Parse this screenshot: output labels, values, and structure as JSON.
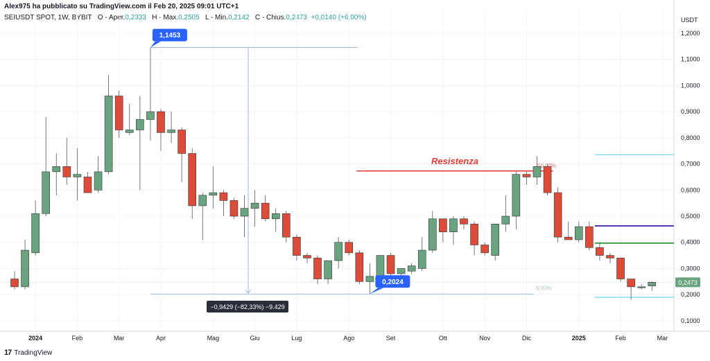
{
  "header": {
    "publisher": "Alex975 ha pubblicato su TradingView.com il Feb 20, 2025 09:01 UTC+1",
    "symbol": "SEIUSDT SPOT, 1W, BYBIT",
    "open_label": "O - Aper.",
    "open": "0,2333",
    "high_label": "H - Max.",
    "high": "0,2505",
    "low_label": "L - Min.",
    "low": "0,2142",
    "close_label": "C - Chius.",
    "close": "0,2473",
    "change": "+0,0140 (+6,00%)"
  },
  "axis_unit": "USDT",
  "footer": {
    "logo_text": "TradingView",
    "logo_mark": "17"
  },
  "colors": {
    "up": "#6aa37f",
    "down": "#dd4b39",
    "grid": "#f0f3fa",
    "annotation_blue": "#2962ff",
    "resistance_red": "#e53935",
    "cyan": "#80deea",
    "purple": "#5e35b1",
    "green_line": "#43a047"
  },
  "chart_data": {
    "type": "candlestick",
    "title": "",
    "ylabel": "USDT",
    "ylim": [
      0.06,
      1.29
    ],
    "y_ticks": [
      {
        "v": 1.2,
        "label": "1,2000"
      },
      {
        "v": 1.1,
        "label": "1,1000"
      },
      {
        "v": 1.0,
        "label": "1,0000"
      },
      {
        "v": 0.9,
        "label": "0,9000"
      },
      {
        "v": 0.8,
        "label": "0,8000"
      },
      {
        "v": 0.7,
        "label": "0,7000"
      },
      {
        "v": 0.6,
        "label": "0,6000"
      },
      {
        "v": 0.5,
        "label": "0,5000"
      },
      {
        "v": 0.4,
        "label": "0,4000"
      },
      {
        "v": 0.3,
        "label": "0,3000"
      },
      {
        "v": 0.2,
        "label": "0,2000"
      },
      {
        "v": 0.1,
        "label": "0,1000"
      }
    ],
    "x_ticks": [
      {
        "i": 2,
        "label": "2024",
        "bold": true
      },
      {
        "i": 6,
        "label": "Feb"
      },
      {
        "i": 10,
        "label": "Mar"
      },
      {
        "i": 14,
        "label": "Apr"
      },
      {
        "i": 19,
        "label": "Mag"
      },
      {
        "i": 23,
        "label": "Giu"
      },
      {
        "i": 27,
        "label": "Lug"
      },
      {
        "i": 32,
        "label": "Ago"
      },
      {
        "i": 36,
        "label": "Set"
      },
      {
        "i": 41,
        "label": "Ott"
      },
      {
        "i": 45,
        "label": "Nov"
      },
      {
        "i": 49,
        "label": "Dic"
      },
      {
        "i": 54,
        "label": "2025",
        "bold": true
      },
      {
        "i": 58,
        "label": "Feb"
      },
      {
        "i": 62,
        "label": "Mar"
      }
    ],
    "candles": [
      {
        "o": 0.26,
        "h": 0.29,
        "l": 0.22,
        "c": 0.23
      },
      {
        "o": 0.23,
        "h": 0.41,
        "l": 0.22,
        "c": 0.37
      },
      {
        "o": 0.36,
        "h": 0.56,
        "l": 0.35,
        "c": 0.51
      },
      {
        "o": 0.51,
        "h": 0.88,
        "l": 0.5,
        "c": 0.67
      },
      {
        "o": 0.67,
        "h": 0.74,
        "l": 0.58,
        "c": 0.69
      },
      {
        "o": 0.69,
        "h": 0.8,
        "l": 0.62,
        "c": 0.65
      },
      {
        "o": 0.65,
        "h": 0.76,
        "l": 0.56,
        "c": 0.66
      },
      {
        "o": 0.65,
        "h": 0.67,
        "l": 0.59,
        "c": 0.59
      },
      {
        "o": 0.6,
        "h": 0.73,
        "l": 0.59,
        "c": 0.67
      },
      {
        "o": 0.67,
        "h": 1.04,
        "l": 0.66,
        "c": 0.96
      },
      {
        "o": 0.96,
        "h": 0.98,
        "l": 0.8,
        "c": 0.83
      },
      {
        "o": 0.82,
        "h": 0.93,
        "l": 0.81,
        "c": 0.83
      },
      {
        "o": 0.83,
        "h": 0.96,
        "l": 0.6,
        "c": 0.87
      },
      {
        "o": 0.87,
        "h": 1.1453,
        "l": 0.79,
        "c": 0.9
      },
      {
        "o": 0.9,
        "h": 0.91,
        "l": 0.75,
        "c": 0.82
      },
      {
        "o": 0.82,
        "h": 0.9,
        "l": 0.78,
        "c": 0.83
      },
      {
        "o": 0.83,
        "h": 0.84,
        "l": 0.63,
        "c": 0.74
      },
      {
        "o": 0.74,
        "h": 0.76,
        "l": 0.49,
        "c": 0.54
      },
      {
        "o": 0.54,
        "h": 0.59,
        "l": 0.41,
        "c": 0.58
      },
      {
        "o": 0.58,
        "h": 0.69,
        "l": 0.53,
        "c": 0.59
      },
      {
        "o": 0.59,
        "h": 0.6,
        "l": 0.5,
        "c": 0.56
      },
      {
        "o": 0.56,
        "h": 0.57,
        "l": 0.49,
        "c": 0.5
      },
      {
        "o": 0.5,
        "h": 0.58,
        "l": 0.42,
        "c": 0.53
      },
      {
        "o": 0.53,
        "h": 0.6,
        "l": 0.46,
        "c": 0.55
      },
      {
        "o": 0.55,
        "h": 0.58,
        "l": 0.48,
        "c": 0.49
      },
      {
        "o": 0.49,
        "h": 0.53,
        "l": 0.44,
        "c": 0.51
      },
      {
        "o": 0.51,
        "h": 0.52,
        "l": 0.4,
        "c": 0.42
      },
      {
        "o": 0.42,
        "h": 0.43,
        "l": 0.33,
        "c": 0.35
      },
      {
        "o": 0.35,
        "h": 0.36,
        "l": 0.32,
        "c": 0.34
      },
      {
        "o": 0.34,
        "h": 0.35,
        "l": 0.24,
        "c": 0.26
      },
      {
        "o": 0.26,
        "h": 0.33,
        "l": 0.24,
        "c": 0.33
      },
      {
        "o": 0.33,
        "h": 0.42,
        "l": 0.3,
        "c": 0.4
      },
      {
        "o": 0.4,
        "h": 0.41,
        "l": 0.35,
        "c": 0.36
      },
      {
        "o": 0.36,
        "h": 0.37,
        "l": 0.24,
        "c": 0.25
      },
      {
        "o": 0.25,
        "h": 0.32,
        "l": 0.2024,
        "c": 0.27
      },
      {
        "o": 0.27,
        "h": 0.34,
        "l": 0.25,
        "c": 0.35
      },
      {
        "o": 0.35,
        "h": 0.36,
        "l": 0.23,
        "c": 0.28
      },
      {
        "o": 0.28,
        "h": 0.3,
        "l": 0.26,
        "c": 0.3
      },
      {
        "o": 0.29,
        "h": 0.32,
        "l": 0.28,
        "c": 0.31
      },
      {
        "o": 0.3,
        "h": 0.42,
        "l": 0.29,
        "c": 0.37
      },
      {
        "o": 0.37,
        "h": 0.52,
        "l": 0.36,
        "c": 0.49
      },
      {
        "o": 0.49,
        "h": 0.49,
        "l": 0.4,
        "c": 0.44
      },
      {
        "o": 0.44,
        "h": 0.5,
        "l": 0.39,
        "c": 0.49
      },
      {
        "o": 0.49,
        "h": 0.5,
        "l": 0.45,
        "c": 0.47
      },
      {
        "o": 0.47,
        "h": 0.48,
        "l": 0.35,
        "c": 0.39
      },
      {
        "o": 0.39,
        "h": 0.4,
        "l": 0.35,
        "c": 0.36
      },
      {
        "o": 0.35,
        "h": 0.47,
        "l": 0.33,
        "c": 0.47
      },
      {
        "o": 0.47,
        "h": 0.58,
        "l": 0.44,
        "c": 0.5
      },
      {
        "o": 0.5,
        "h": 0.67,
        "l": 0.45,
        "c": 0.66
      },
      {
        "o": 0.66,
        "h": 0.67,
        "l": 0.62,
        "c": 0.65
      },
      {
        "o": 0.65,
        "h": 0.73,
        "l": 0.62,
        "c": 0.69
      },
      {
        "o": 0.69,
        "h": 0.7,
        "l": 0.58,
        "c": 0.59
      },
      {
        "o": 0.59,
        "h": 0.61,
        "l": 0.4,
        "c": 0.42
      },
      {
        "o": 0.42,
        "h": 0.48,
        "l": 0.41,
        "c": 0.41
      },
      {
        "o": 0.41,
        "h": 0.48,
        "l": 0.4,
        "c": 0.46
      },
      {
        "o": 0.46,
        "h": 0.48,
        "l": 0.37,
        "c": 0.38
      },
      {
        "o": 0.38,
        "h": 0.4,
        "l": 0.33,
        "c": 0.35
      },
      {
        "o": 0.35,
        "h": 0.36,
        "l": 0.32,
        "c": 0.34
      },
      {
        "o": 0.34,
        "h": 0.34,
        "l": 0.25,
        "c": 0.26
      },
      {
        "o": 0.26,
        "h": 0.26,
        "l": 0.18,
        "c": 0.23
      },
      {
        "o": 0.23,
        "h": 0.24,
        "l": 0.22,
        "c": 0.23
      },
      {
        "o": 0.2333,
        "h": 0.2505,
        "l": 0.2142,
        "c": 0.2473
      }
    ],
    "annotations": {
      "high_label": "1,1453",
      "high_value": 1.1453,
      "high_index": 13,
      "low_label": "0,2024",
      "low_value": 0.2024,
      "low_index": 34,
      "measure_label": "−0,9429 (−82,33%) −9.429",
      "resistance_text": "Resistenza",
      "resistance_value": 0.673,
      "resistance_from": 33,
      "resistance_to": 51,
      "fib_top_label": "50,00%",
      "fib_bottom_label": "0,00%",
      "last_price_label": "0,2473",
      "last_price": 0.2473,
      "hline_cyan_top": 0.735,
      "hline_purple": 0.463,
      "hline_green": 0.397,
      "hline_cyan_bottom": 0.19
    }
  }
}
